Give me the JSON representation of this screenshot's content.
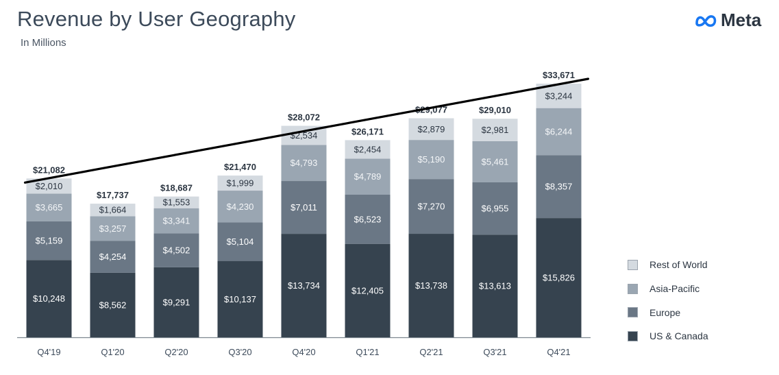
{
  "header": {
    "title": "Revenue by User Geography",
    "subtitle": "In Millions",
    "brand": "Meta"
  },
  "chart_data": {
    "type": "bar",
    "stacked": true,
    "categories": [
      "Q4'19",
      "Q1'20",
      "Q2'20",
      "Q3'20",
      "Q4'20",
      "Q1'21",
      "Q2'21",
      "Q3'21",
      "Q4'21"
    ],
    "series": [
      {
        "name": "US & Canada",
        "color": "#36434f",
        "values": [
          10248,
          8562,
          9291,
          10137,
          13734,
          12405,
          13738,
          13613,
          15826
        ]
      },
      {
        "name": "Europe",
        "color": "#6a7785",
        "values": [
          5159,
          4254,
          4502,
          5104,
          7011,
          6523,
          7270,
          6955,
          8357
        ]
      },
      {
        "name": "Asia-Pacific",
        "color": "#9aa6b2",
        "values": [
          3665,
          3257,
          3341,
          4230,
          4793,
          4789,
          5190,
          5461,
          6244
        ]
      },
      {
        "name": "Rest of World",
        "color": "#d4dae0",
        "values": [
          2010,
          1664,
          1553,
          1999,
          2534,
          2454,
          2879,
          2981,
          3244
        ]
      }
    ],
    "value_labels": [
      [
        "$10,248",
        "$8,562",
        "$9,291",
        "$10,137",
        "$13,734",
        "$12,405",
        "$13,738",
        "$13,613",
        "$15,826"
      ],
      [
        "$5,159",
        "$4,254",
        "$4,502",
        "$5,104",
        "$7,011",
        "$6,523",
        "$7,270",
        "$6,955",
        "$8,357"
      ],
      [
        "$3,665",
        "$3,257",
        "$3,341",
        "$4,230",
        "$4,793",
        "$4,789",
        "$5,190",
        "$5,461",
        "$6,244"
      ],
      [
        "$2,010",
        "$1,664",
        "$1,553",
        "$1,999",
        "$2,534",
        "$2,454",
        "$2,879",
        "$2,981",
        "$3,244"
      ]
    ],
    "totals": [
      21082,
      17737,
      18687,
      21470,
      28072,
      26171,
      29077,
      29010,
      33671
    ],
    "total_labels": [
      "$21,082",
      "$17,737",
      "$18,687",
      "$21,470",
      "$28,072",
      "$26,171",
      "$29,077",
      "$29,010",
      "$33,671"
    ],
    "ylim": [
      0,
      33671
    ],
    "trend_line": true,
    "grid": false,
    "legend_position": "right",
    "legend_order": [
      "Rest of World",
      "Asia-Pacific",
      "Europe",
      "US & Canada"
    ]
  }
}
